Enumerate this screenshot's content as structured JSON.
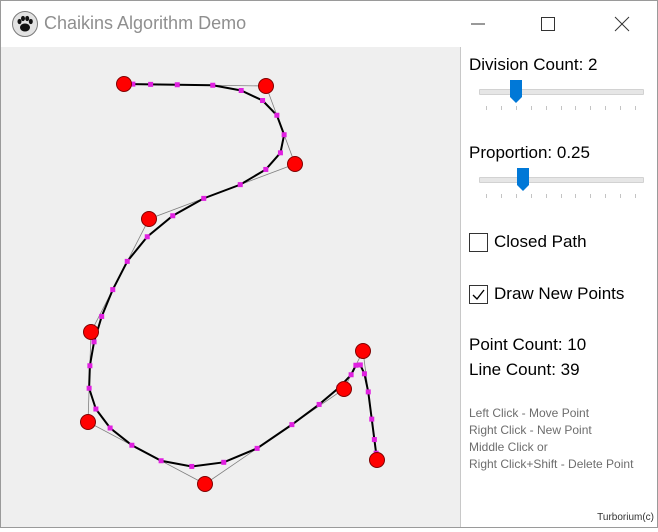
{
  "window": {
    "title": "Chaikins Algorithm Demo",
    "app_icon": "paw-icon",
    "controls": [
      "minimize-icon",
      "maximize-icon",
      "close-icon"
    ]
  },
  "panel": {
    "division": {
      "label": "Division Count: 2",
      "value": 2,
      "min": 0,
      "max": 10
    },
    "proportion": {
      "label": "Proportion: 0.25",
      "value": 0.25,
      "min": 0,
      "max": 1
    },
    "closed_path": {
      "label": "Closed Path",
      "checked": false
    },
    "draw_new_points": {
      "label": "Draw New Points",
      "checked": true
    },
    "point_count": "Point Count: 10",
    "line_count": "Line Count: 39",
    "help": [
      "Left Click - Move Point",
      "Right Click - New Point",
      "Middle Click or",
      "Right Click+Shift - Delete Point"
    ],
    "credit": "Turborium(c)"
  },
  "colors": {
    "control_point": "#ff0000",
    "new_point": "#e020e0",
    "curve": "#000000",
    "control_polygon": "#808080",
    "slider_thumb": "#0078d7",
    "canvas_bg": "#efefef"
  },
  "curve": {
    "control_points": [
      [
        123,
        37
      ],
      [
        265,
        39
      ],
      [
        294,
        117
      ],
      [
        148,
        172
      ],
      [
        90,
        285
      ],
      [
        87,
        375
      ],
      [
        204,
        437
      ],
      [
        343,
        342
      ],
      [
        362,
        304
      ],
      [
        376,
        413
      ]
    ]
  }
}
